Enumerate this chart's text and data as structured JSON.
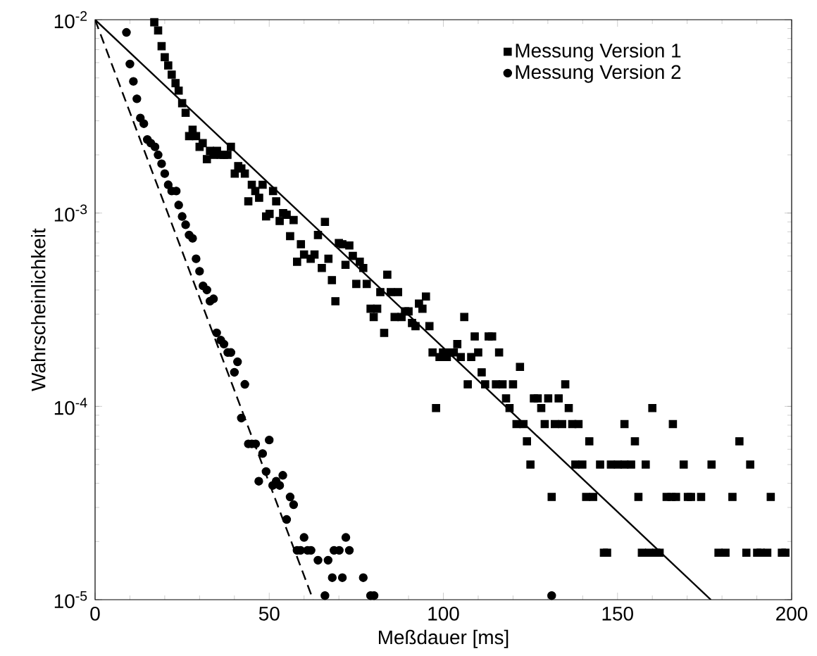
{
  "chart_data": {
    "type": "scatter",
    "xlabel": "Meßdauer [ms]",
    "ylabel": "Wahrscheinlichkeit",
    "log": "y",
    "xlim": [
      0,
      200
    ],
    "ylim": [
      1e-05,
      0.01
    ],
    "xticks": [
      0,
      50,
      100,
      150,
      200
    ],
    "yticks": [
      {
        "value": 1e-05,
        "label": "10$^{-5}$"
      },
      {
        "value": 0.0001,
        "label": "10$^{-4}$"
      },
      {
        "value": 0.001,
        "label": "10$^{-3}$"
      },
      {
        "value": 0.01,
        "label": "10$^{-2}$"
      }
    ],
    "legend": "top right",
    "series": [
      {
        "name": "Messung Version 1",
        "marker": "square",
        "color": "#000000",
        "x": [
          17.0,
          18.1,
          19.1,
          20.0,
          21.0,
          22.0,
          23.1,
          24.0,
          25.0,
          26.0,
          27.0,
          28.0,
          29.0,
          30.0,
          30.9,
          32.1,
          33.0,
          34.0,
          35.0,
          36.1,
          37.0,
          38.0,
          39.0,
          40.1,
          41.1,
          42.0,
          43.0,
          44.0,
          45.0,
          46.0,
          47.1,
          48.1,
          49.1,
          50.1,
          51.1,
          52.0,
          53.0,
          54.0,
          55.0,
          56.0,
          57.0,
          58.0,
          59.1,
          60.0,
          61.9,
          63.0,
          64.0,
          65.1,
          66.0,
          67.0,
          68.0,
          69.0,
          70.0,
          71.0,
          71.9,
          73.0,
          74.0,
          75.0,
          76.0,
          77.0,
          78.0,
          79.1,
          80.0,
          81.0,
          81.9,
          83.0,
          83.9,
          84.9,
          86.0,
          87.0,
          88.0,
          89.0,
          90.0,
          91.0,
          92.0,
          93.0,
          94.0,
          95.0,
          96.0,
          96.9,
          97.9,
          98.9,
          99.9,
          101.0,
          102.0,
          103.0,
          104.0,
          105.0,
          106.0,
          107.0,
          108.0,
          109.0,
          110.0,
          111.0,
          112.0,
          113.0,
          114.0,
          115.1,
          116.0,
          117.0,
          118.0,
          119.0,
          120.0,
          121.0,
          122.0,
          123.0,
          124.0,
          125.0,
          126.0,
          127.1,
          128.1,
          129.1,
          130.1,
          131.1,
          132.0,
          133.1,
          134.1,
          135.0,
          136.0,
          137.0,
          137.9,
          138.8,
          139.9,
          141.0,
          141.9,
          143.0,
          145.0,
          146.1,
          147.0,
          148.1,
          150.1,
          152.0,
          152.0,
          153.9,
          155.0,
          156.0,
          157.0,
          158.1,
          159.1,
          160.0,
          161.1,
          162.1,
          164.1,
          165.5,
          165.9,
          166.8,
          169.0,
          170.2,
          171.1,
          174.0,
          177.0,
          179.0,
          181.0,
          183.0,
          185.0,
          187.0,
          188.1,
          190.1,
          191.1,
          193.0,
          194.0,
          197.2,
          198.2
        ],
        "values": [
          0.0097,
          0.0088,
          0.0073,
          0.0064,
          0.0058,
          0.0052,
          0.0047,
          0.0043,
          0.0037,
          0.0033,
          0.0025,
          0.0027,
          0.0025,
          0.0022,
          0.0023,
          0.0019,
          0.0021,
          0.002,
          0.0021,
          0.002,
          0.002,
          0.002,
          0.0022,
          0.0016,
          0.00175,
          0.0017,
          0.0016,
          0.00115,
          0.0014,
          0.0013,
          0.0012,
          0.0014,
          0.00096,
          0.00099,
          0.0013,
          0.00115,
          0.00091,
          0.001,
          0.00098,
          0.00076,
          0.00092,
          0.00056,
          0.00069,
          0.00061,
          0.00058,
          0.00061,
          0.00077,
          0.00052,
          0.0009,
          0.00058,
          0.00045,
          0.00035,
          0.0007,
          0.00069,
          0.00054,
          0.00068,
          0.0006,
          0.00043,
          0.00056,
          0.00052,
          0.00043,
          0.00032,
          0.00029,
          0.00032,
          0.00039,
          0.00024,
          0.00048,
          0.00039,
          0.00029,
          0.00039,
          0.00029,
          0.00031,
          0.00031,
          0.00027,
          0.00026,
          0.00034,
          0.00032,
          0.00037,
          0.00026,
          0.00019,
          9.8e-05,
          0.00018,
          0.00019,
          0.00018,
          0.00019,
          0.00019,
          0.00021,
          0.00018,
          0.00029,
          0.00013,
          0.00018,
          0.00023,
          0.00019,
          0.00015,
          0.00013,
          0.00023,
          0.00023,
          0.00013,
          0.00019,
          0.00013,
          0.00011,
          9.8e-05,
          0.00013,
          8.1e-05,
          0.00016,
          8.1e-05,
          6.6e-05,
          5e-05,
          0.00011,
          0.00011,
          9.8e-05,
          8.1e-05,
          0.00011,
          3.4e-05,
          8.1e-05,
          0.00011,
          8.1e-05,
          0.00013,
          9.8e-05,
          8.1e-05,
          5e-05,
          8.1e-05,
          5e-05,
          3.4e-05,
          6.6e-05,
          3.4e-05,
          5e-05,
          1.75e-05,
          1.75e-05,
          5e-05,
          5e-05,
          5e-05,
          8.1e-05,
          5e-05,
          6.6e-05,
          3.4e-05,
          1.75e-05,
          5e-05,
          1.75e-05,
          9.8e-05,
          1.75e-05,
          1.75e-05,
          3.4e-05,
          3.4e-05,
          8.1e-05,
          3.4e-05,
          5e-05,
          3.4e-05,
          3.4e-05,
          3.4e-05,
          5e-05,
          1.75e-05,
          1.75e-05,
          3.4e-05,
          6.6e-05,
          1.75e-05,
          5e-05,
          1.75e-05,
          1.75e-05,
          1.75e-05,
          3.4e-05,
          1.75e-05,
          1.75e-05
        ]
      },
      {
        "name": "Messung Version 2",
        "marker": "circle",
        "color": "#000000",
        "x": [
          9.0,
          10.0,
          11.0,
          12.0,
          13.0,
          14.0,
          15.0,
          16.0,
          17.2,
          18.1,
          19.1,
          20.0,
          21.0,
          22.0,
          23.3,
          24.0,
          25.0,
          26.0,
          27.0,
          28.0,
          29.0,
          30.0,
          31.0,
          32.1,
          33.0,
          34.0,
          34.9,
          36.1,
          37.0,
          38.1,
          39.0,
          40.0,
          40.9,
          42.0,
          43.0,
          44.0,
          45.0,
          46.1,
          47.0,
          48.1,
          49.1,
          50.0,
          51.0,
          52.0,
          53.0,
          53.9,
          55.0,
          56.0,
          57.0,
          58.0,
          59.0,
          60.0,
          61.0,
          62.0,
          64.0,
          66.0,
          66.9,
          68.1,
          68.6,
          70.1,
          71.0,
          72.0,
          73.0,
          77.0,
          79.1,
          80.1,
          131.1
        ],
        "values": [
          0.0086,
          0.0059,
          0.0048,
          0.0039,
          0.0031,
          0.0029,
          0.0024,
          0.0023,
          0.0022,
          0.002,
          0.0018,
          0.0016,
          0.0014,
          0.0013,
          0.0013,
          0.0011,
          0.00096,
          0.00087,
          0.00077,
          0.00074,
          0.00058,
          0.0005,
          0.00042,
          0.0004,
          0.00035,
          0.00036,
          0.00024,
          0.00022,
          0.00021,
          0.00019,
          0.00019,
          0.00015,
          0.00017,
          8.7e-05,
          0.00013,
          6.4e-05,
          6.4e-05,
          6.4e-05,
          4.1e-05,
          5.7e-05,
          4.6e-05,
          6.7e-05,
          3.9e-05,
          4.1e-05,
          3.9e-05,
          4.4e-05,
          2.6e-05,
          3.4e-05,
          3.1e-05,
          1.8e-05,
          1.8e-05,
          2.1e-05,
          1.8e-05,
          1.8e-05,
          1.6e-05,
          1.05e-05,
          1.6e-05,
          1.3e-05,
          1.8e-05,
          1.8e-05,
          1.3e-05,
          2.1e-05,
          1.8e-05,
          1.3e-05,
          1.05e-05,
          1.05e-05,
          1.05e-05
        ]
      },
      {
        "type": "line",
        "line_style": "solid",
        "color": "#000000",
        "x": [
          0,
          176.8
        ],
        "values": [
          0.01,
          1e-05
        ]
      },
      {
        "type": "line",
        "line_style": "dashed",
        "color": "#000000",
        "x": [
          0,
          62.6
        ],
        "values": [
          0.01,
          1e-05
        ]
      }
    ]
  }
}
